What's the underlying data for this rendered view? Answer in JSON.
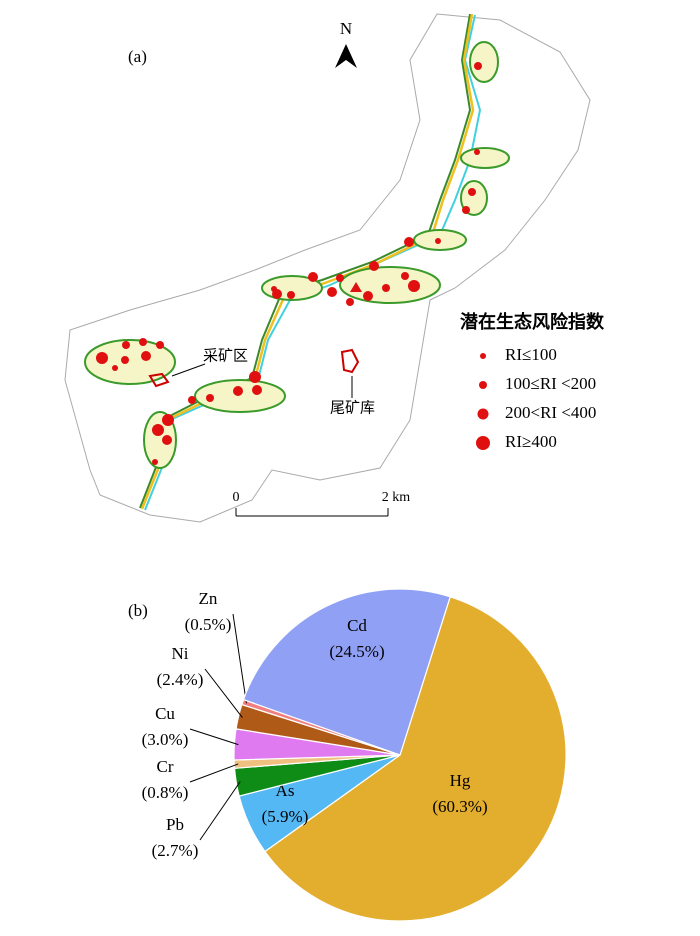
{
  "map": {
    "panel": "(a)",
    "north": "N",
    "legend_title": "潜在生态风险指数",
    "legend_items": [
      "RI≤100",
      "100≤RI <200",
      "200<RI <400",
      "RI≥400"
    ],
    "mining_area": "采矿区",
    "tailings": "尾矿库",
    "scale_start": "0",
    "scale_end": "2 km"
  },
  "chart_data": {
    "type": "pie",
    "panel": "(b)",
    "categories": [
      "Hg",
      "As",
      "Pb",
      "Cr",
      "Cu",
      "Ni",
      "Zn",
      "Cd"
    ],
    "values": [
      60.3,
      5.9,
      2.7,
      0.8,
      3.0,
      2.4,
      0.5,
      24.5
    ],
    "value_labels": [
      "(60.3%)",
      "(5.9%)",
      "(2.7%)",
      "(0.8%)",
      "(3.0%)",
      "(2.4%)",
      "(0.5%)",
      "(24.5%)"
    ],
    "colors": [
      "#e3ad2e",
      "#54b8f5",
      "#0e8c16",
      "#f0c080",
      "#e07af0",
      "#b05a18",
      "#f08080",
      "#8fa0f5"
    ]
  }
}
